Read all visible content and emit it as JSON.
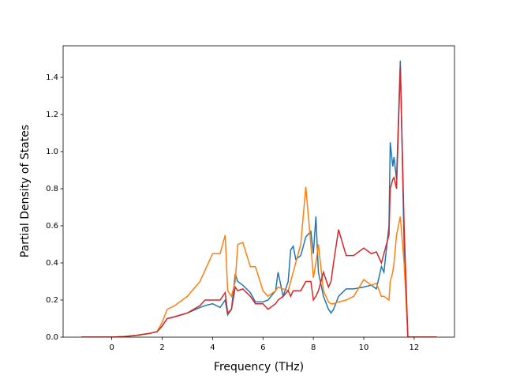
{
  "chart_data": {
    "type": "line",
    "xlabel": "Frequency (THz)",
    "ylabel": "Partial Density of States",
    "x": [
      -1.2,
      0,
      0.5,
      1,
      1.5,
      1.8,
      2,
      2.2,
      2.5,
      3,
      3.5,
      3.7,
      4,
      4.3,
      4.5,
      4.6,
      4.75,
      4.9,
      5,
      5.2,
      5.5,
      5.7,
      6,
      6.2,
      6.5,
      6.6,
      6.8,
      7,
      7.1,
      7.2,
      7.3,
      7.5,
      7.7,
      7.9,
      8,
      8.1,
      8.2,
      8.4,
      8.6,
      8.7,
      8.8,
      9,
      9.3,
      9.6,
      10,
      10.3,
      10.5,
      10.7,
      10.8,
      11,
      11.05,
      11.15,
      11.2,
      11.3,
      11.45,
      11.6,
      11.75,
      12.9
    ],
    "series": [
      {
        "color": "#1f77b4",
        "values": [
          0,
          0,
          0.003,
          0.01,
          0.02,
          0.03,
          0.06,
          0.1,
          0.11,
          0.13,
          0.16,
          0.17,
          0.18,
          0.16,
          0.2,
          0.12,
          0.15,
          0.34,
          0.3,
          0.28,
          0.24,
          0.19,
          0.19,
          0.2,
          0.25,
          0.35,
          0.22,
          0.3,
          0.47,
          0.49,
          0.42,
          0.44,
          0.54,
          0.57,
          0.45,
          0.65,
          0.35,
          0.22,
          0.15,
          0.13,
          0.15,
          0.22,
          0.26,
          0.26,
          0.27,
          0.28,
          0.26,
          0.38,
          0.35,
          0.6,
          1.05,
          0.92,
          0.97,
          0.85,
          1.49,
          0.5,
          0,
          0
        ]
      },
      {
        "color": "#ff7f0e",
        "values": [
          0,
          0,
          0.003,
          0.01,
          0.02,
          0.03,
          0.08,
          0.15,
          0.17,
          0.22,
          0.3,
          0.36,
          0.45,
          0.45,
          0.55,
          0.25,
          0.22,
          0.3,
          0.5,
          0.51,
          0.38,
          0.38,
          0.25,
          0.22,
          0.25,
          0.27,
          0.26,
          0.25,
          0.3,
          0.35,
          0.4,
          0.5,
          0.81,
          0.5,
          0.32,
          0.4,
          0.5,
          0.25,
          0.19,
          0.18,
          0.18,
          0.19,
          0.2,
          0.22,
          0.31,
          0.28,
          0.29,
          0.22,
          0.22,
          0.2,
          0.3,
          0.35,
          0.4,
          0.55,
          0.65,
          0.4,
          0,
          0
        ]
      },
      {
        "color": "#d62728",
        "values": [
          0,
          0,
          0.003,
          0.01,
          0.02,
          0.03,
          0.06,
          0.1,
          0.11,
          0.13,
          0.17,
          0.2,
          0.2,
          0.2,
          0.24,
          0.13,
          0.15,
          0.27,
          0.25,
          0.26,
          0.22,
          0.18,
          0.18,
          0.15,
          0.18,
          0.2,
          0.22,
          0.25,
          0.22,
          0.25,
          0.25,
          0.25,
          0.3,
          0.3,
          0.2,
          0.22,
          0.25,
          0.35,
          0.27,
          0.3,
          0.4,
          0.58,
          0.44,
          0.44,
          0.48,
          0.45,
          0.46,
          0.4,
          0.45,
          0.55,
          0.8,
          0.85,
          0.86,
          0.8,
          1.46,
          0.6,
          0,
          0
        ]
      }
    ],
    "xlim": [
      -1.93,
      13.6
    ],
    "ylim": [
      0,
      1.57
    ],
    "xticks": [
      0,
      2,
      4,
      6,
      8,
      10,
      12
    ],
    "yticks": [
      {
        "value": 0,
        "label": "0.0"
      },
      0.2,
      0.4,
      0.6,
      0.8,
      {
        "value": 1,
        "label": "1.0"
      },
      1.2,
      1.4
    ]
  }
}
